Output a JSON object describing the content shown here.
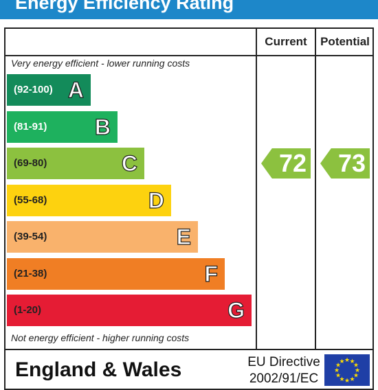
{
  "title": "Energy Efficiency Rating",
  "columns": {
    "current": "Current",
    "potential": "Potential"
  },
  "notes": {
    "top": "Very energy efficient - lower running costs",
    "bottom": "Not energy efficient - higher running costs"
  },
  "bands": [
    {
      "range": "(92-100)",
      "letter": "A",
      "color": "#138b5a",
      "range_color": "#ffffff"
    },
    {
      "range": "(81-91)",
      "letter": "B",
      "color": "#1eb15e",
      "range_color": "#ffffff"
    },
    {
      "range": "(69-80)",
      "letter": "C",
      "color": "#8cc13f",
      "range_color": "#222222"
    },
    {
      "range": "(55-68)",
      "letter": "D",
      "color": "#fdd20f",
      "range_color": "#222222"
    },
    {
      "range": "(39-54)",
      "letter": "E",
      "color": "#f9b26c",
      "range_color": "#222222"
    },
    {
      "range": "(21-38)",
      "letter": "F",
      "color": "#f07e24",
      "range_color": "#222222"
    },
    {
      "range": "(1-20)",
      "letter": "G",
      "color": "#e51c34",
      "range_color": "#222222"
    }
  ],
  "current": {
    "value": "72",
    "band": "C",
    "color": "#8cc13f"
  },
  "potential": {
    "value": "73",
    "band": "C",
    "color": "#8cc13f"
  },
  "footer": {
    "region": "England & Wales",
    "directive_line1": "EU Directive",
    "directive_line2": "2002/91/EC"
  },
  "colors": {
    "title_bar": "#1d87c9",
    "eu_flag": "#1f3fa6",
    "eu_star": "#ffdd00"
  }
}
